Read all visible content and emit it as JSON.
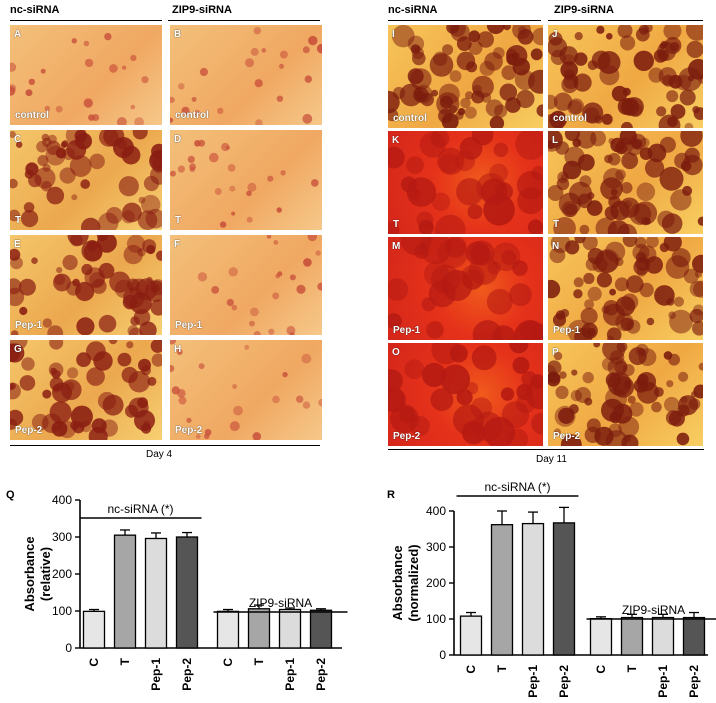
{
  "left_block": {
    "col_headers": [
      "nc-siRNA",
      "ZIP9-siRNA"
    ],
    "day_label": "Day 4",
    "tiles": [
      {
        "letter": "A",
        "condition": "control",
        "stain": "light"
      },
      {
        "letter": "B",
        "condition": "control",
        "stain": "light"
      },
      {
        "letter": "C",
        "condition": "T",
        "stain": "heavy"
      },
      {
        "letter": "D",
        "condition": "T",
        "stain": "light"
      },
      {
        "letter": "E",
        "condition": "Pep-1",
        "stain": "heavy"
      },
      {
        "letter": "F",
        "condition": "Pep-1",
        "stain": "light"
      },
      {
        "letter": "G",
        "condition": "Pep-2",
        "stain": "heavy"
      },
      {
        "letter": "H",
        "condition": "Pep-2",
        "stain": "light"
      }
    ]
  },
  "right_block": {
    "col_headers": [
      "nc-siRNA",
      "ZIP9-siRNA"
    ],
    "day_label": "Day 11",
    "tiles": [
      {
        "letter": "I",
        "condition": "control",
        "stain": "medium"
      },
      {
        "letter": "J",
        "condition": "control",
        "stain": "medium"
      },
      {
        "letter": "K",
        "condition": "T",
        "stain": "red"
      },
      {
        "letter": "L",
        "condition": "T",
        "stain": "medium"
      },
      {
        "letter": "M",
        "condition": "Pep-1",
        "stain": "red"
      },
      {
        "letter": "N",
        "condition": "Pep-1",
        "stain": "medium"
      },
      {
        "letter": "O",
        "condition": "Pep-2",
        "stain": "red"
      },
      {
        "letter": "P",
        "condition": "Pep-2",
        "stain": "medium"
      }
    ]
  },
  "chart_data": [
    {
      "panel": "Q",
      "type": "bar",
      "categories": [
        "C",
        "T",
        "Pep-1",
        "Pep-2",
        "C",
        "T",
        "Pep-1",
        "Pep-2"
      ],
      "values": [
        99,
        305,
        296,
        300,
        99,
        106,
        104,
        102
      ],
      "errors": [
        5,
        14,
        15,
        12,
        5,
        10,
        4,
        4
      ],
      "colors": [
        "#e6e6e6",
        "#a6a6a6",
        "#dcdcdc",
        "#555555",
        "#e6e6e6",
        "#a6a6a6",
        "#dcdcdc",
        "#555555"
      ],
      "ylabel": "Absorbance\n(relative)",
      "ylim": [
        0,
        400
      ],
      "yticks": [
        0,
        100,
        200,
        300,
        400
      ],
      "groups": [
        {
          "label": "nc-siRNA (*)",
          "from": 0,
          "to": 3
        },
        {
          "label": "ZIP9-siRNA",
          "from": 4,
          "to": 7
        }
      ]
    },
    {
      "panel": "R",
      "type": "bar",
      "categories": [
        "C",
        "T",
        "Pep-1",
        "Pep-2",
        "C",
        "T",
        "Pep-1",
        "Pep-2"
      ],
      "values": [
        108,
        362,
        365,
        367,
        101,
        104,
        104,
        104
      ],
      "errors": [
        10,
        38,
        32,
        43,
        5,
        9,
        9,
        14
      ],
      "colors": [
        "#e6e6e6",
        "#a6a6a6",
        "#dcdcdc",
        "#555555",
        "#e6e6e6",
        "#a6a6a6",
        "#dcdcdc",
        "#555555"
      ],
      "ylabel": "Absorbance\n(normalized)",
      "ylim": [
        0,
        400
      ],
      "yticks": [
        0,
        100,
        200,
        300,
        400
      ],
      "groups": [
        {
          "label": "nc-siRNA (*)",
          "from": 0,
          "to": 3
        },
        {
          "label": "ZIP9-siRNA",
          "from": 4,
          "to": 7
        }
      ]
    }
  ]
}
